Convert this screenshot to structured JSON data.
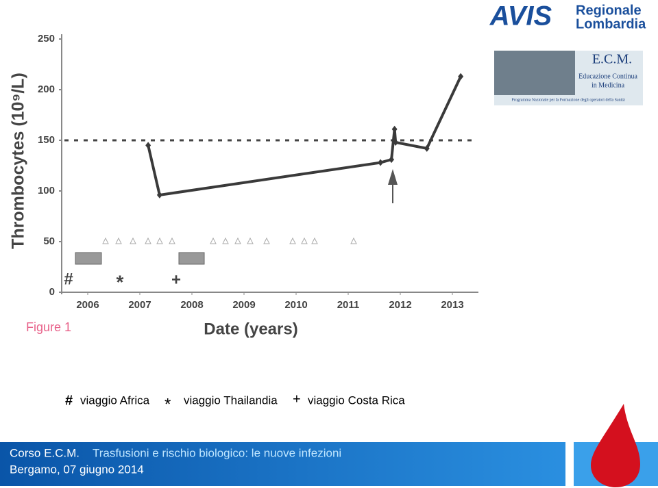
{
  "chart_data": {
    "type": "line",
    "y_label": "Thrombocytes (10⁹/L)",
    "x_label": "Date (years)",
    "figure_label": "Figure 1",
    "x": [
      2007.66,
      2007.88,
      2012.12,
      2012.33,
      2012.39,
      2012.41,
      2013.01,
      2013.66
    ],
    "series": [
      {
        "name": "Thrombocytes",
        "color": "#3a3a3a",
        "values": [
          145,
          96,
          128,
          131,
          161,
          148,
          142,
          213
        ]
      }
    ],
    "reference_line": 150,
    "xlim": [
      2006,
      2014
    ],
    "xticks": [
      {
        "value": 2006.5,
        "label": "2006"
      },
      {
        "value": 2007.5,
        "label": "2007"
      },
      {
        "value": 2008.5,
        "label": "2008"
      },
      {
        "value": 2009.5,
        "label": "2009"
      },
      {
        "value": 2010.5,
        "label": "2010"
      },
      {
        "value": 2011.5,
        "label": "2011"
      },
      {
        "value": 2012.5,
        "label": "2012"
      },
      {
        "value": 2013.5,
        "label": "2013"
      }
    ],
    "ylim": [
      0,
      250
    ],
    "yticks": [
      0,
      50,
      100,
      150,
      200,
      250
    ],
    "event_symbols": [
      "#",
      "*",
      "+"
    ]
  },
  "legend": [
    {
      "symbol": "#",
      "text": "viaggio Africa"
    },
    {
      "symbol": "*",
      "text": "viaggio Thailandia"
    },
    {
      "symbol": "+",
      "text": "viaggio Costa Rica"
    }
  ],
  "logo": {
    "line1": "Regionale",
    "line2": "Lombardia",
    "brand": "AVIS"
  },
  "ecm": {
    "title": "E.C.M.",
    "line1": "Educazione Continua",
    "line2": "in Medicina",
    "footer": "Programma Nazionale per la Formazione degli operatori della Sanità"
  },
  "footer": {
    "course": "Corso E.C.M.",
    "topic": "Trasfusioni e rischio biologico: le nuove infezioni",
    "place": "Bergamo, 07 giugno 2014"
  }
}
